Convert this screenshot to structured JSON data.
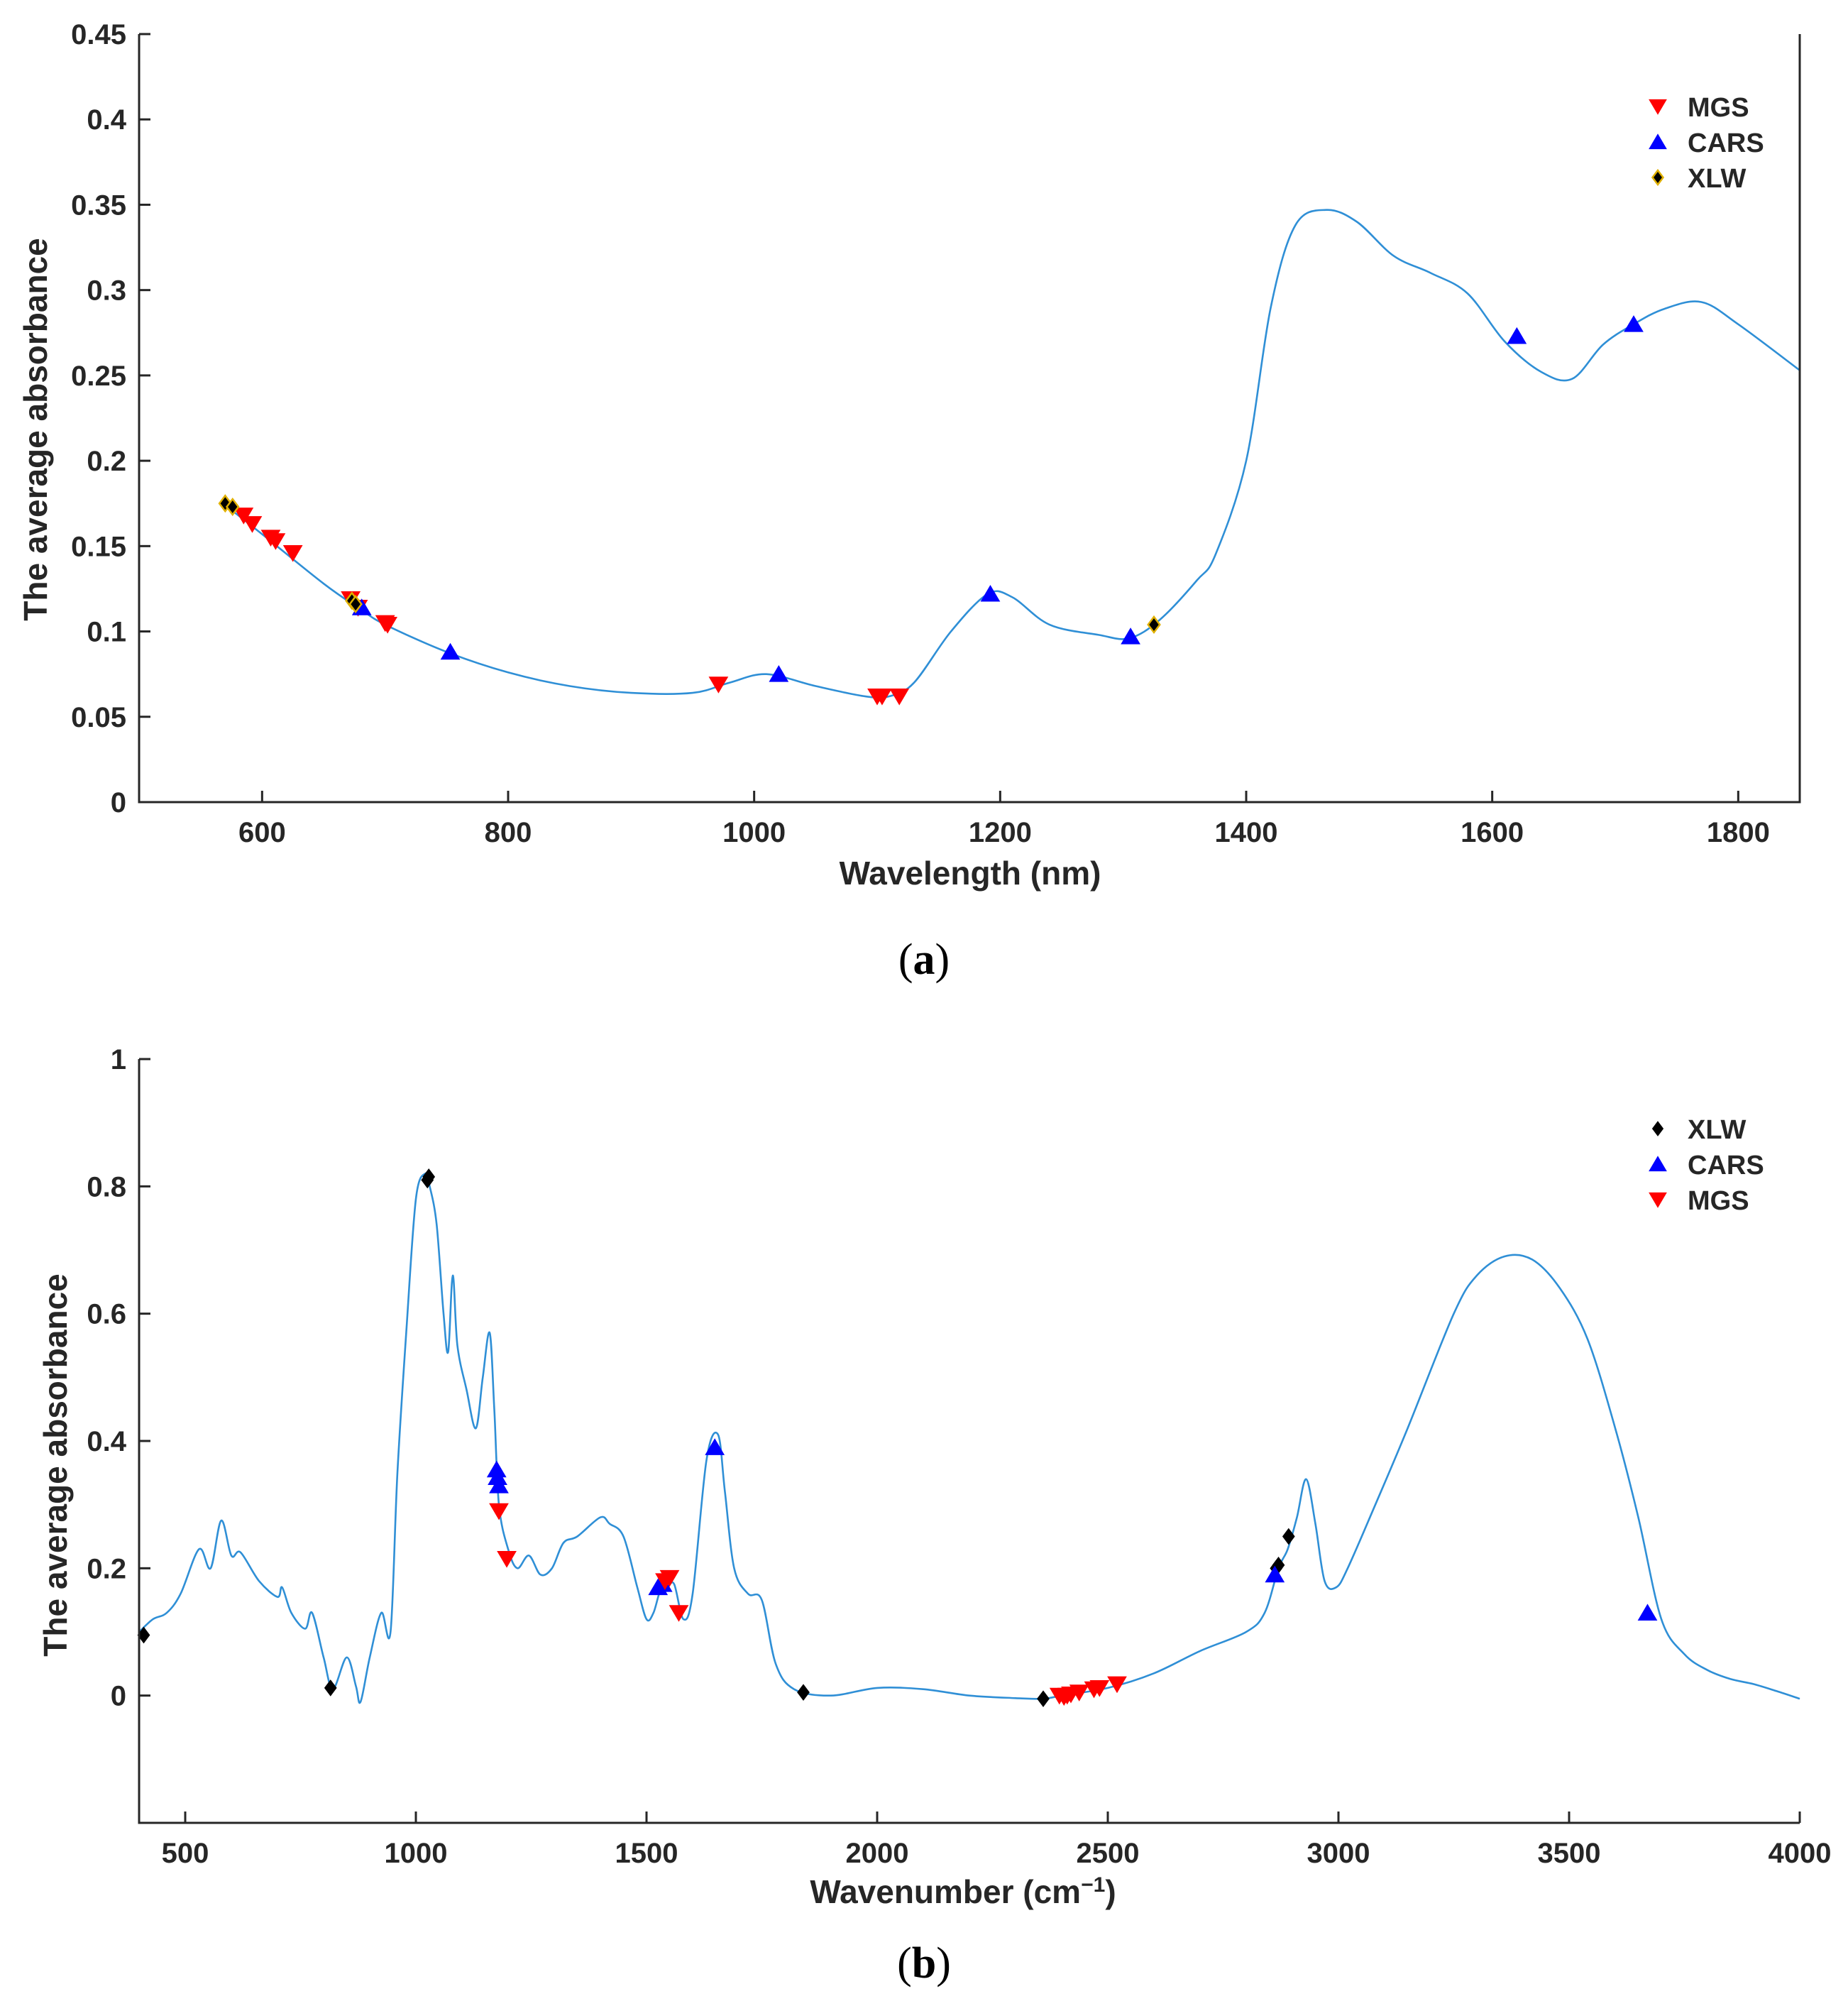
{
  "chart_data": [
    {
      "id": "a",
      "type": "line",
      "caption": {
        "open": "(",
        "letter": "a",
        "close": ")"
      },
      "xlabel": "Wavelength (nm)",
      "ylabel": "The average absorbance",
      "xlim": [
        500,
        1850
      ],
      "ylim": [
        0,
        0.45
      ],
      "xticks": [
        600,
        800,
        1000,
        1200,
        1400,
        1600,
        1800
      ],
      "xtick_labels": [
        "600",
        "800",
        "1000",
        "1200",
        "1400",
        "1600",
        "1800"
      ],
      "yticks": [
        0,
        0.05,
        0.1,
        0.15,
        0.2,
        0.25,
        0.3,
        0.35,
        0.4,
        0.45
      ],
      "ytick_labels": [
        "0",
        "0.05",
        "0.1",
        "0.15",
        "0.2",
        "0.25",
        "0.3",
        "0.35",
        "0.4",
        "0.45"
      ],
      "legend_position": "top-right",
      "legend": [
        {
          "name": "MGS",
          "marker": "triangle-down",
          "color": "#ff0000"
        },
        {
          "name": "CARS",
          "marker": "triangle-up",
          "color": "#0000ff"
        },
        {
          "name": "XLW",
          "marker": "diamond",
          "color": "#000000",
          "edge": "#e0b000"
        }
      ],
      "line": {
        "color": "#2f8fd6",
        "x": [
          570,
          600,
          650,
          680,
          700,
          750,
          800,
          850,
          900,
          950,
          980,
          1010,
          1050,
          1090,
          1110,
          1130,
          1160,
          1190,
          1210,
          1240,
          1280,
          1305,
          1330,
          1360,
          1375,
          1400,
          1420,
          1440,
          1465,
          1490,
          1520,
          1550,
          1580,
          1610,
          1640,
          1665,
          1690,
          1715,
          1740,
          1770,
          1800,
          1850
        ],
        "y": [
          0.174,
          0.157,
          0.128,
          0.113,
          0.104,
          0.088,
          0.076,
          0.068,
          0.064,
          0.064,
          0.07,
          0.075,
          0.068,
          0.062,
          0.062,
          0.07,
          0.1,
          0.122,
          0.12,
          0.104,
          0.098,
          0.096,
          0.107,
          0.13,
          0.145,
          0.2,
          0.29,
          0.338,
          0.347,
          0.34,
          0.32,
          0.31,
          0.298,
          0.27,
          0.252,
          0.248,
          0.268,
          0.28,
          0.289,
          0.293,
          0.28,
          0.253
        ]
      },
      "markers": [
        {
          "series": "MGS",
          "x": [
            585,
            592,
            607,
            611,
            625,
            672,
            678,
            700,
            702,
            971,
            1100,
            1104,
            1118
          ],
          "y": [
            0.168,
            0.163,
            0.155,
            0.153,
            0.146,
            0.119,
            0.114,
            0.105,
            0.104,
            0.069,
            0.062,
            0.062,
            0.062
          ]
        },
        {
          "series": "CARS",
          "x": [
            681,
            753,
            1020,
            1192,
            1306,
            1620,
            1715
          ],
          "y": [
            0.114,
            0.088,
            0.075,
            0.122,
            0.097,
            0.273,
            0.28
          ]
        },
        {
          "series": "XLW",
          "x": [
            570,
            576,
            673,
            676,
            1325
          ],
          "y": [
            0.175,
            0.173,
            0.118,
            0.116,
            0.104
          ]
        }
      ]
    },
    {
      "id": "b",
      "type": "line",
      "caption": {
        "open": "(",
        "letter": "b",
        "close": ")"
      },
      "xlabel": "Wavenumber (cm",
      "xlabel_superscript": "−1",
      "xlabel_suffix": ")",
      "ylabel": "The average absorbance",
      "xlim": [
        400,
        4000
      ],
      "ylim": [
        -0.2,
        1
      ],
      "xticks": [
        500,
        1000,
        1500,
        2000,
        2500,
        3000,
        3500,
        4000
      ],
      "xtick_labels": [
        "500",
        "1000",
        "1500",
        "2000",
        "2500",
        "3000",
        "3500",
        "4000"
      ],
      "yticks": [
        0,
        0.2,
        0.4,
        0.6,
        0.8,
        1
      ],
      "ytick_labels": [
        "0",
        "0.2",
        "0.4",
        "0.6",
        "0.8",
        "1"
      ],
      "legend_position": "top-right",
      "legend": [
        {
          "name": "XLW",
          "marker": "diamond",
          "color": "#000000"
        },
        {
          "name": "CARS",
          "marker": "triangle-up",
          "color": "#0000ff"
        },
        {
          "name": "MGS",
          "marker": "triangle-down",
          "color": "#ff0000"
        }
      ],
      "line": {
        "color": "#2f8fd6",
        "x": [
          400,
          430,
          460,
          490,
          530,
          555,
          578,
          600,
          620,
          660,
          700,
          710,
          730,
          760,
          775,
          800,
          820,
          850,
          870,
          880,
          900,
          925,
          945,
          960,
          980,
          1000,
          1020,
          1030,
          1045,
          1060,
          1070,
          1080,
          1090,
          1110,
          1130,
          1145,
          1160,
          1170,
          1180,
          1200,
          1220,
          1245,
          1270,
          1295,
          1320,
          1350,
          1400,
          1420,
          1450,
          1480,
          1500,
          1515,
          1530,
          1545,
          1560,
          1580,
          1600,
          1630,
          1655,
          1670,
          1690,
          1720,
          1750,
          1780,
          1820,
          1900,
          2000,
          2100,
          2200,
          2300,
          2360,
          2400,
          2500,
          2600,
          2700,
          2800,
          2840,
          2870,
          2890,
          2910,
          2930,
          2950,
          2970,
          2995,
          3020,
          3080,
          3150,
          3250,
          3300,
          3360,
          3420,
          3480,
          3540,
          3600,
          3650,
          3700,
          3750,
          3800,
          3850,
          3900,
          3950,
          4000
        ],
        "y": [
          0.1,
          0.12,
          0.13,
          0.16,
          0.23,
          0.2,
          0.275,
          0.22,
          0.225,
          0.18,
          0.155,
          0.17,
          0.13,
          0.105,
          0.13,
          0.06,
          0.01,
          0.06,
          0.015,
          -0.01,
          0.06,
          0.13,
          0.1,
          0.35,
          0.58,
          0.78,
          0.82,
          0.8,
          0.74,
          0.6,
          0.54,
          0.66,
          0.55,
          0.48,
          0.42,
          0.5,
          0.57,
          0.45,
          0.3,
          0.23,
          0.2,
          0.22,
          0.19,
          0.2,
          0.24,
          0.25,
          0.28,
          0.27,
          0.25,
          0.17,
          0.12,
          0.13,
          0.165,
          0.17,
          0.175,
          0.12,
          0.16,
          0.37,
          0.41,
          0.32,
          0.2,
          0.16,
          0.15,
          0.05,
          0.01,
          0.0,
          0.012,
          0.01,
          0.0,
          -0.004,
          -0.005,
          0.0,
          0.012,
          0.035,
          0.07,
          0.1,
          0.13,
          0.2,
          0.23,
          0.28,
          0.34,
          0.27,
          0.18,
          0.17,
          0.2,
          0.3,
          0.42,
          0.6,
          0.66,
          0.69,
          0.685,
          0.64,
          0.56,
          0.42,
          0.28,
          0.12,
          0.065,
          0.04,
          0.026,
          0.018,
          0.007,
          -0.005
        ]
      },
      "markers": [
        {
          "series": "XLW",
          "x": [
            410,
            815,
            1025,
            1028,
            1840,
            2360,
            2865,
            2870,
            2892
          ],
          "y": [
            0.095,
            0.012,
            0.81,
            0.815,
            0.005,
            -0.005,
            0.2,
            0.205,
            0.25
          ]
        },
        {
          "series": "CARS",
          "x": [
            1175,
            1177,
            1180,
            1525,
            1535,
            1648,
            2862,
            3670
          ],
          "y": [
            0.355,
            0.343,
            0.33,
            0.17,
            0.175,
            0.39,
            0.19,
            0.13
          ]
        },
        {
          "series": "MGS",
          "x": [
            1180,
            1197,
            1540,
            1550,
            1570,
            2395,
            2405,
            2412,
            2420,
            2438,
            2470,
            2482,
            2520
          ],
          "y": [
            0.29,
            0.215,
            0.18,
            0.185,
            0.13,
            0.0,
            -0.002,
            0.0,
            0.002,
            0.005,
            0.01,
            0.012,
            0.018
          ]
        }
      ]
    }
  ]
}
